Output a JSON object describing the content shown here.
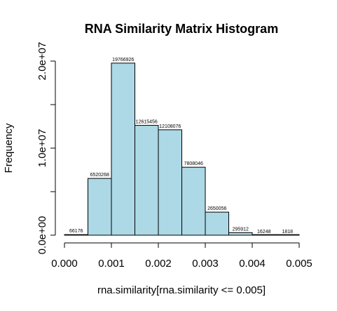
{
  "chart_data": {
    "type": "bar",
    "title": "RNA Similarity Matrix Histogram",
    "xlabel": "rna.similarity[rna.similarity <= 0.005]",
    "ylabel": "Frequency",
    "bins": [
      {
        "start": 0.0,
        "end": 0.0005,
        "count": 66176,
        "label": "66176"
      },
      {
        "start": 0.0005,
        "end": 0.001,
        "count": 6520268,
        "label": "6520268"
      },
      {
        "start": 0.001,
        "end": 0.0015,
        "count": 19766926,
        "label": "19766926"
      },
      {
        "start": 0.0015,
        "end": 0.002,
        "count": 12615456,
        "label": "12615456"
      },
      {
        "start": 0.002,
        "end": 0.0025,
        "count": 12108076,
        "label": "12108076"
      },
      {
        "start": 0.0025,
        "end": 0.003,
        "count": 7808046,
        "label": "7808046"
      },
      {
        "start": 0.003,
        "end": 0.0035,
        "count": 2650056,
        "label": "2650056"
      },
      {
        "start": 0.0035,
        "end": 0.004,
        "count": 295912,
        "label": "295912"
      },
      {
        "start": 0.004,
        "end": 0.0045,
        "count": 16248,
        "label": "16248"
      },
      {
        "start": 0.0045,
        "end": 0.005,
        "count": 1818,
        "label": "1818"
      }
    ],
    "xlim": [
      0,
      0.005
    ],
    "ylim": [
      0,
      20000000
    ],
    "xticks": [
      {
        "value": 0.0,
        "label": "0.000"
      },
      {
        "value": 0.001,
        "label": "0.001"
      },
      {
        "value": 0.002,
        "label": "0.002"
      },
      {
        "value": 0.003,
        "label": "0.003"
      },
      {
        "value": 0.004,
        "label": "0.004"
      },
      {
        "value": 0.005,
        "label": "0.005"
      }
    ],
    "yticks_labeled": [
      {
        "value": 0,
        "label": "0.0e+00"
      },
      {
        "value": 10000000,
        "label": "1.0e+07"
      },
      {
        "value": 20000000,
        "label": "2.0e+07"
      }
    ],
    "yticks_minor": [
      5000000,
      15000000
    ],
    "bar_fill": "#add8e6",
    "bar_stroke": "#000000",
    "grid": false,
    "legend": "none"
  }
}
